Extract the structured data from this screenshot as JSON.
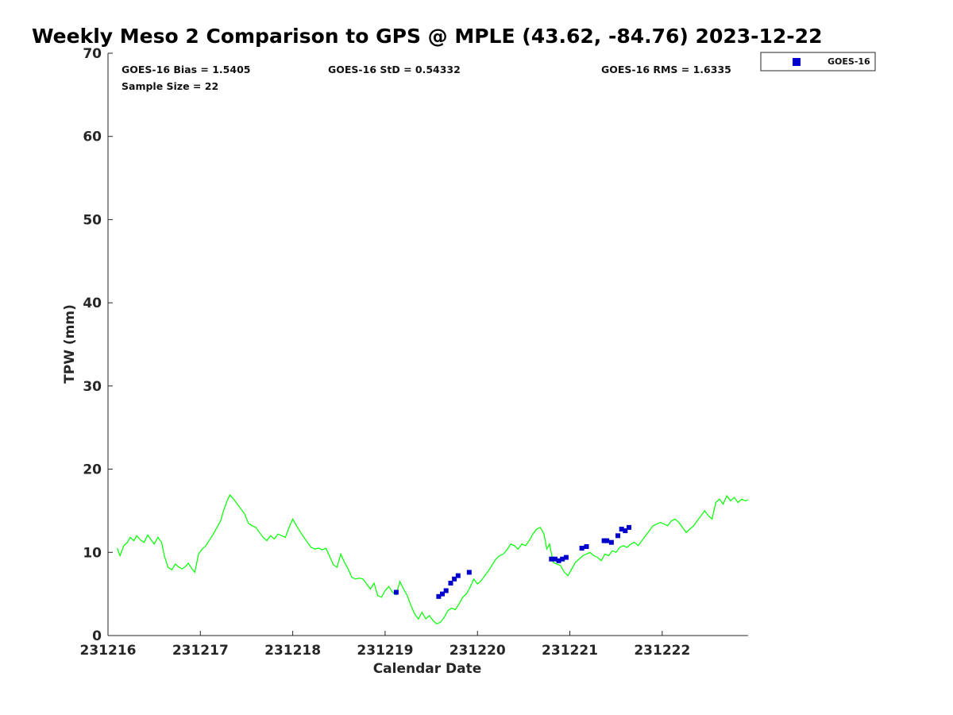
{
  "chart_data": {
    "type": "scatter",
    "title": "Weekly Meso 2 Comparison to GPS @ MPLE (43.62, -84.76) 2023-12-22",
    "xlabel": "Calendar Date",
    "ylabel": "TPW (mm)",
    "x_ticks": [
      "231216",
      "231217",
      "231218",
      "231219",
      "231220",
      "231221",
      "231222"
    ],
    "x_range_days": [
      16.0,
      22.93
    ],
    "ylim": [
      0,
      70
    ],
    "y_ticks": [
      0,
      10,
      20,
      30,
      40,
      50,
      60,
      70
    ],
    "grid": false,
    "legend": {
      "position": "top-right",
      "entries": [
        {
          "label": "GOES-16",
          "color": "#0000cc",
          "marker": "square"
        }
      ]
    },
    "stats": {
      "bias": "GOES-16 Bias = 1.5405",
      "std": "GOES-16 StD = 0.54332",
      "rms": "GOES-16 RMS = 1.6335",
      "sample": "Sample Size = 22"
    },
    "series": [
      {
        "name": "",
        "kind": "line",
        "color": "#00ff00",
        "points": [
          [
            16.1,
            10.5
          ],
          [
            16.13,
            9.6
          ],
          [
            16.17,
            10.8
          ],
          [
            16.21,
            11.2
          ],
          [
            16.24,
            11.8
          ],
          [
            16.28,
            11.4
          ],
          [
            16.31,
            12.0
          ],
          [
            16.35,
            11.5
          ],
          [
            16.39,
            11.2
          ],
          [
            16.43,
            12.1
          ],
          [
            16.46,
            11.6
          ],
          [
            16.5,
            11.0
          ],
          [
            16.54,
            11.8
          ],
          [
            16.58,
            11.2
          ],
          [
            16.61,
            9.6
          ],
          [
            16.65,
            8.2
          ],
          [
            16.69,
            7.9
          ],
          [
            16.73,
            8.6
          ],
          [
            16.76,
            8.3
          ],
          [
            16.8,
            8.0
          ],
          [
            16.84,
            8.3
          ],
          [
            16.87,
            8.7
          ],
          [
            16.91,
            8.0
          ],
          [
            16.94,
            7.6
          ],
          [
            16.98,
            9.8
          ],
          [
            17.02,
            10.4
          ],
          [
            17.06,
            10.8
          ],
          [
            17.1,
            11.5
          ],
          [
            17.14,
            12.2
          ],
          [
            17.18,
            13.0
          ],
          [
            17.22,
            13.8
          ],
          [
            17.25,
            15.0
          ],
          [
            17.29,
            16.2
          ],
          [
            17.32,
            16.9
          ],
          [
            17.36,
            16.4
          ],
          [
            17.4,
            15.8
          ],
          [
            17.44,
            15.2
          ],
          [
            17.48,
            14.6
          ],
          [
            17.52,
            13.5
          ],
          [
            17.56,
            13.2
          ],
          [
            17.6,
            13.0
          ],
          [
            17.64,
            12.4
          ],
          [
            17.68,
            11.8
          ],
          [
            17.72,
            11.4
          ],
          [
            17.76,
            12.0
          ],
          [
            17.8,
            11.6
          ],
          [
            17.84,
            12.2
          ],
          [
            17.88,
            12.0
          ],
          [
            17.92,
            11.8
          ],
          [
            17.96,
            13.0
          ],
          [
            18.0,
            14.0
          ],
          [
            18.04,
            13.2
          ],
          [
            18.08,
            12.5
          ],
          [
            18.12,
            11.8
          ],
          [
            18.16,
            11.2
          ],
          [
            18.2,
            10.6
          ],
          [
            18.24,
            10.4
          ],
          [
            18.28,
            10.5
          ],
          [
            18.32,
            10.3
          ],
          [
            18.36,
            10.5
          ],
          [
            18.4,
            9.5
          ],
          [
            18.44,
            8.5
          ],
          [
            18.48,
            8.2
          ],
          [
            18.52,
            9.8
          ],
          [
            18.56,
            8.8
          ],
          [
            18.6,
            8.0
          ],
          [
            18.64,
            7.0
          ],
          [
            18.68,
            6.8
          ],
          [
            18.72,
            6.9
          ],
          [
            18.76,
            6.8
          ],
          [
            18.8,
            6.2
          ],
          [
            18.84,
            5.6
          ],
          [
            18.88,
            6.3
          ],
          [
            18.92,
            4.8
          ],
          [
            18.96,
            4.6
          ],
          [
            19.0,
            5.4
          ],
          [
            19.04,
            5.9
          ],
          [
            19.08,
            5.2
          ],
          [
            19.12,
            4.9
          ],
          [
            19.16,
            6.5
          ],
          [
            19.2,
            5.6
          ],
          [
            19.24,
            4.8
          ],
          [
            19.28,
            3.6
          ],
          [
            19.32,
            2.6
          ],
          [
            19.36,
            2.0
          ],
          [
            19.4,
            2.8
          ],
          [
            19.44,
            2.0
          ],
          [
            19.48,
            2.4
          ],
          [
            19.52,
            1.8
          ],
          [
            19.56,
            1.4
          ],
          [
            19.6,
            1.6
          ],
          [
            19.64,
            2.2
          ],
          [
            19.68,
            3.0
          ],
          [
            19.72,
            3.3
          ],
          [
            19.76,
            3.1
          ],
          [
            19.8,
            3.8
          ],
          [
            19.84,
            4.6
          ],
          [
            19.88,
            5.0
          ],
          [
            19.92,
            5.8
          ],
          [
            19.96,
            6.8
          ],
          [
            20.0,
            6.2
          ],
          [
            20.04,
            6.6
          ],
          [
            20.08,
            7.2
          ],
          [
            20.12,
            7.8
          ],
          [
            20.16,
            8.5
          ],
          [
            20.2,
            9.2
          ],
          [
            20.24,
            9.6
          ],
          [
            20.28,
            9.8
          ],
          [
            20.32,
            10.3
          ],
          [
            20.36,
            11.0
          ],
          [
            20.4,
            10.8
          ],
          [
            20.44,
            10.4
          ],
          [
            20.48,
            11.0
          ],
          [
            20.52,
            10.8
          ],
          [
            20.56,
            11.4
          ],
          [
            20.6,
            12.2
          ],
          [
            20.64,
            12.8
          ],
          [
            20.68,
            13.0
          ],
          [
            20.72,
            12.2
          ],
          [
            20.75,
            10.4
          ],
          [
            20.78,
            11.0
          ],
          [
            20.82,
            8.8
          ],
          [
            20.86,
            8.6
          ],
          [
            20.9,
            8.4
          ],
          [
            20.94,
            7.6
          ],
          [
            20.98,
            7.2
          ],
          [
            21.02,
            8.0
          ],
          [
            21.06,
            8.8
          ],
          [
            21.1,
            9.2
          ],
          [
            21.14,
            9.6
          ],
          [
            21.18,
            9.8
          ],
          [
            21.22,
            10.0
          ],
          [
            21.26,
            9.6
          ],
          [
            21.3,
            9.4
          ],
          [
            21.34,
            9.0
          ],
          [
            21.38,
            9.8
          ],
          [
            21.42,
            9.6
          ],
          [
            21.46,
            10.2
          ],
          [
            21.5,
            10.0
          ],
          [
            21.54,
            10.6
          ],
          [
            21.58,
            10.8
          ],
          [
            21.62,
            10.6
          ],
          [
            21.66,
            11.0
          ],
          [
            21.7,
            11.2
          ],
          [
            21.74,
            10.8
          ],
          [
            21.78,
            11.4
          ],
          [
            21.82,
            12.0
          ],
          [
            21.86,
            12.6
          ],
          [
            21.9,
            13.2
          ],
          [
            21.94,
            13.4
          ],
          [
            21.98,
            13.6
          ],
          [
            22.02,
            13.4
          ],
          [
            22.06,
            13.2
          ],
          [
            22.1,
            13.8
          ],
          [
            22.14,
            14.0
          ],
          [
            22.18,
            13.6
          ],
          [
            22.22,
            13.0
          ],
          [
            22.26,
            12.4
          ],
          [
            22.3,
            12.8
          ],
          [
            22.34,
            13.2
          ],
          [
            22.38,
            13.8
          ],
          [
            22.42,
            14.4
          ],
          [
            22.46,
            15.0
          ],
          [
            22.5,
            14.4
          ],
          [
            22.54,
            14.0
          ],
          [
            22.58,
            16.0
          ],
          [
            22.62,
            16.4
          ],
          [
            22.66,
            15.8
          ],
          [
            22.7,
            16.8
          ],
          [
            22.74,
            16.2
          ],
          [
            22.78,
            16.6
          ],
          [
            22.82,
            16.0
          ],
          [
            22.86,
            16.4
          ],
          [
            22.9,
            16.2
          ],
          [
            22.93,
            16.3
          ]
        ]
      },
      {
        "name": "GOES-16",
        "kind": "scatter",
        "color": "#0000cc",
        "points": [
          [
            19.12,
            5.2
          ],
          [
            19.58,
            4.7
          ],
          [
            19.62,
            5.0
          ],
          [
            19.66,
            5.4
          ],
          [
            19.71,
            6.3
          ],
          [
            19.75,
            6.8
          ],
          [
            19.79,
            7.2
          ],
          [
            19.91,
            7.6
          ],
          [
            20.8,
            9.2
          ],
          [
            20.84,
            9.2
          ],
          [
            20.88,
            9.0
          ],
          [
            20.92,
            9.2
          ],
          [
            20.96,
            9.4
          ],
          [
            21.13,
            10.5
          ],
          [
            21.18,
            10.7
          ],
          [
            21.37,
            11.4
          ],
          [
            21.4,
            11.4
          ],
          [
            21.45,
            11.2
          ],
          [
            21.52,
            12.0
          ],
          [
            21.56,
            12.8
          ],
          [
            21.6,
            12.6
          ],
          [
            21.64,
            13.0
          ]
        ]
      }
    ]
  }
}
